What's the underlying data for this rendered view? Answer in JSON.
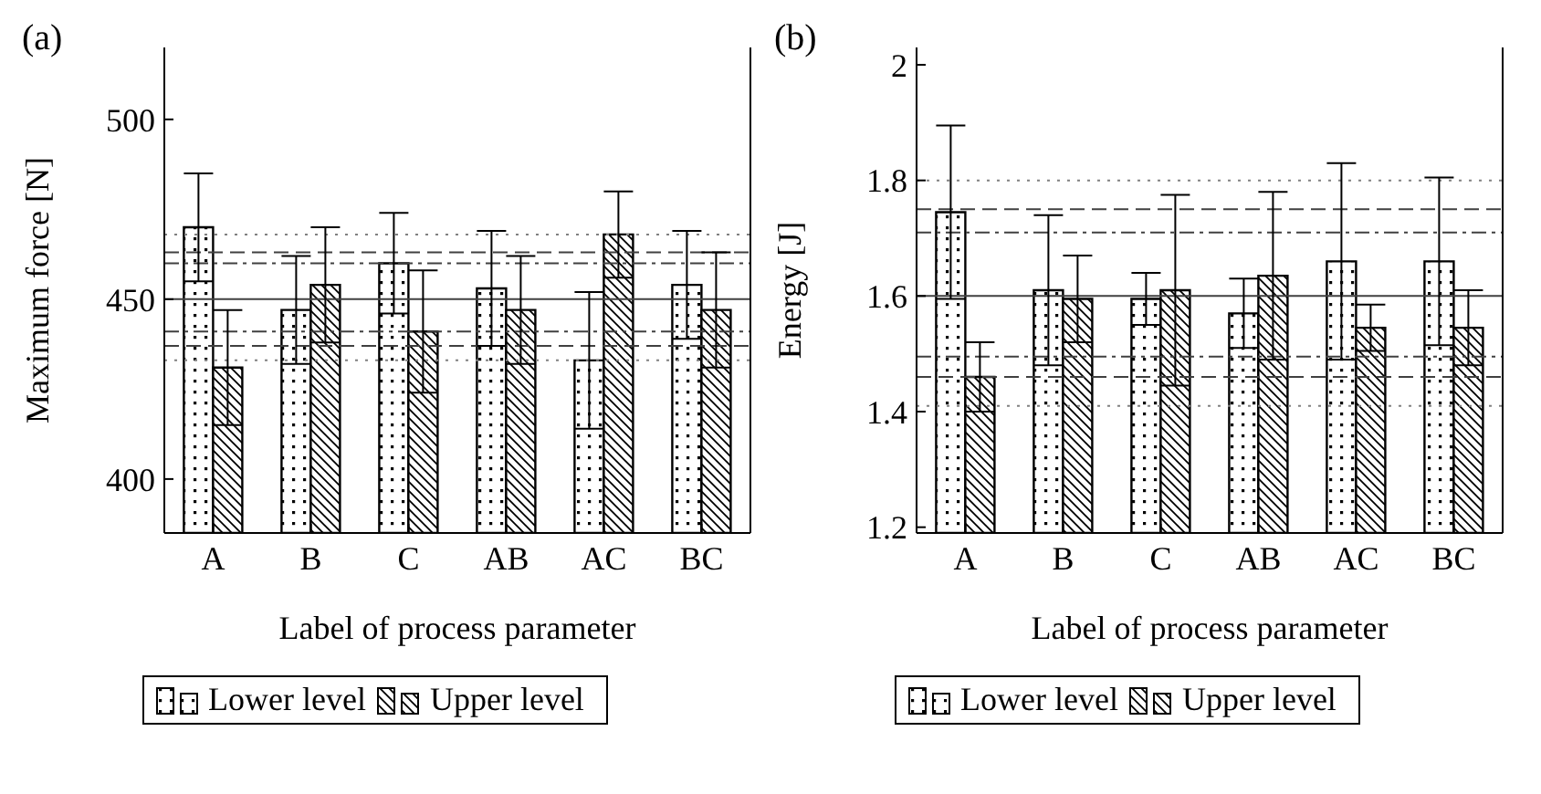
{
  "chart_data": [
    {
      "type": "bar",
      "title": "(a)",
      "xlabel": "Label of process parameter",
      "ylabel": "Maximum force [N]",
      "categories": [
        "A",
        "B",
        "C",
        "AB",
        "AC",
        "BC"
      ],
      "series": [
        {
          "name": "Lower level",
          "color": "#000000",
          "values": [
            470,
            447,
            460,
            453,
            433,
            454
          ],
          "errors": [
            15,
            15,
            14,
            16,
            19,
            15
          ]
        },
        {
          "name": "Upper level",
          "color": "#000000",
          "values": [
            431,
            454,
            441,
            447,
            468,
            447
          ],
          "errors": [
            16,
            16,
            17,
            15,
            12,
            16
          ]
        }
      ],
      "ylim": [
        385,
        520
      ],
      "yticks": [
        400,
        450,
        500
      ],
      "grid": false,
      "legend": "bottom",
      "ref_lines": [
        {
          "axis": "y",
          "value": 468,
          "line_style": "dotted",
          "color": "#808080"
        },
        {
          "axis": "y",
          "value": 463,
          "line_style": "dashed",
          "color": "#404040"
        },
        {
          "axis": "y",
          "value": 460,
          "line_style": "dashdot",
          "color": "#404040"
        },
        {
          "axis": "y",
          "value": 450,
          "line_style": "solid",
          "color": "#404040"
        },
        {
          "axis": "y",
          "value": 441,
          "line_style": "dashdot",
          "color": "#404040"
        },
        {
          "axis": "y",
          "value": 437,
          "line_style": "dashed",
          "color": "#404040"
        },
        {
          "axis": "y",
          "value": 433,
          "line_style": "dotted",
          "color": "#808080"
        }
      ]
    },
    {
      "type": "bar",
      "title": "(b)",
      "xlabel": "Label of process parameter",
      "ylabel": "Energy [J]",
      "categories": [
        "A",
        "B",
        "C",
        "AB",
        "AC",
        "BC"
      ],
      "series": [
        {
          "name": "Lower level",
          "color": "#000000",
          "values": [
            1.745,
            1.61,
            1.595,
            1.57,
            1.66,
            1.66
          ],
          "errors": [
            0.15,
            0.13,
            0.045,
            0.06,
            0.17,
            0.145
          ]
        },
        {
          "name": "Upper level",
          "color": "#000000",
          "values": [
            1.46,
            1.595,
            1.61,
            1.635,
            1.545,
            1.545
          ],
          "errors": [
            0.06,
            0.075,
            0.165,
            0.145,
            0.04,
            0.065
          ]
        }
      ],
      "ylim": [
        1.19,
        2.03
      ],
      "yticks": [
        1.2,
        1.4,
        1.6,
        1.8,
        2
      ],
      "grid": false,
      "legend": "bottom",
      "ref_lines": [
        {
          "axis": "y",
          "value": 1.8,
          "line_style": "dotted",
          "color": "#808080"
        },
        {
          "axis": "y",
          "value": 1.75,
          "line_style": "dashed",
          "color": "#404040"
        },
        {
          "axis": "y",
          "value": 1.71,
          "line_style": "dashdot",
          "color": "#404040"
        },
        {
          "axis": "y",
          "value": 1.6,
          "line_style": "solid",
          "color": "#404040"
        },
        {
          "axis": "y",
          "value": 1.495,
          "line_style": "dashdot",
          "color": "#404040"
        },
        {
          "axis": "y",
          "value": 1.46,
          "line_style": "dashed",
          "color": "#404040"
        },
        {
          "axis": "y",
          "value": 1.41,
          "line_style": "dotted",
          "color": "#808080"
        }
      ]
    }
  ]
}
